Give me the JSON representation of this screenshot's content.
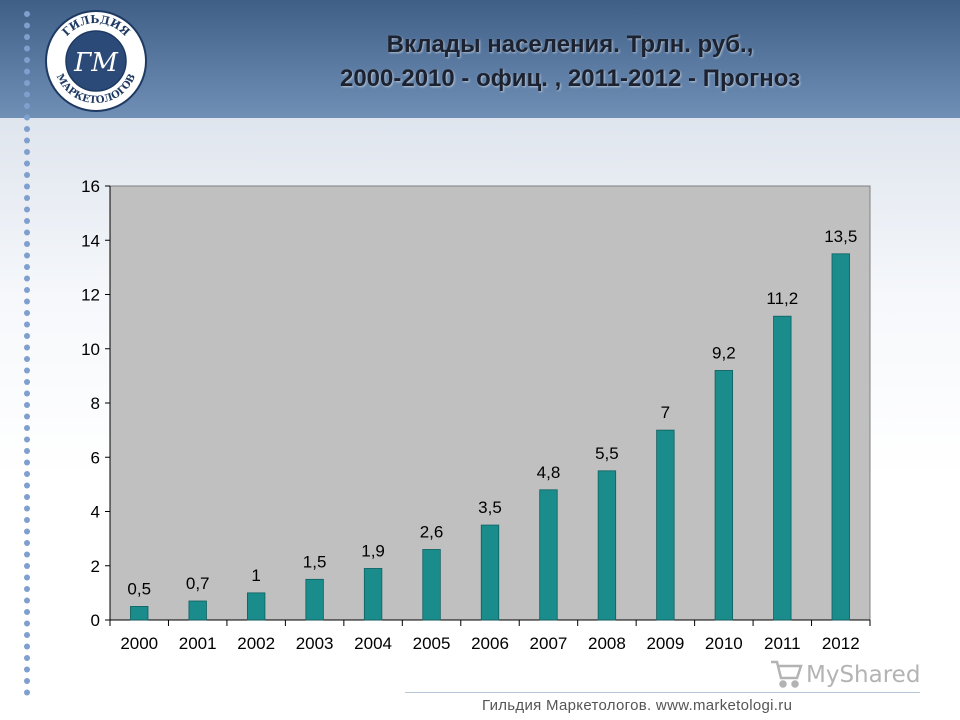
{
  "slide": {
    "title_line1": "Вклады населения. Трлн. руб.,",
    "title_line2": "2000-2010 - офиц. , 2011-2012 - Прогноз",
    "logo_text_top": "ГИЛЬДИЯ",
    "logo_text_bottom": "МАРКЕТОЛОГОВ",
    "logo_monogram": "ГМ",
    "footer": "Гильдия Маркетологов. www.marketologi.ru",
    "watermark": "MyShared",
    "colors": {
      "header": "#4d6d94",
      "bar": "#1a8c8c",
      "plot_bg": "#c0c0c0"
    }
  },
  "chart_data": {
    "type": "bar",
    "title": "Вклады населения. Трлн. руб., 2000-2010 - офиц. , 2011-2012 - Прогноз",
    "categories": [
      "2000",
      "2001",
      "2002",
      "2003",
      "2004",
      "2005",
      "2006",
      "2007",
      "2008",
      "2009",
      "2010",
      "2011",
      "2012"
    ],
    "values": [
      0.5,
      0.7,
      1,
      1.5,
      1.9,
      2.6,
      3.5,
      4.8,
      5.5,
      7,
      9.2,
      11.2,
      13.5
    ],
    "labels": [
      "0,5",
      "0,7",
      "1",
      "1,5",
      "1,9",
      "2,6",
      "3,5",
      "4,8",
      "5,5",
      "7",
      "9,2",
      "11,2",
      "13,5"
    ],
    "ylim": [
      0,
      16
    ],
    "yticks": [
      0,
      2,
      4,
      6,
      8,
      10,
      12,
      14,
      16
    ],
    "grid": false,
    "legend": "none"
  }
}
